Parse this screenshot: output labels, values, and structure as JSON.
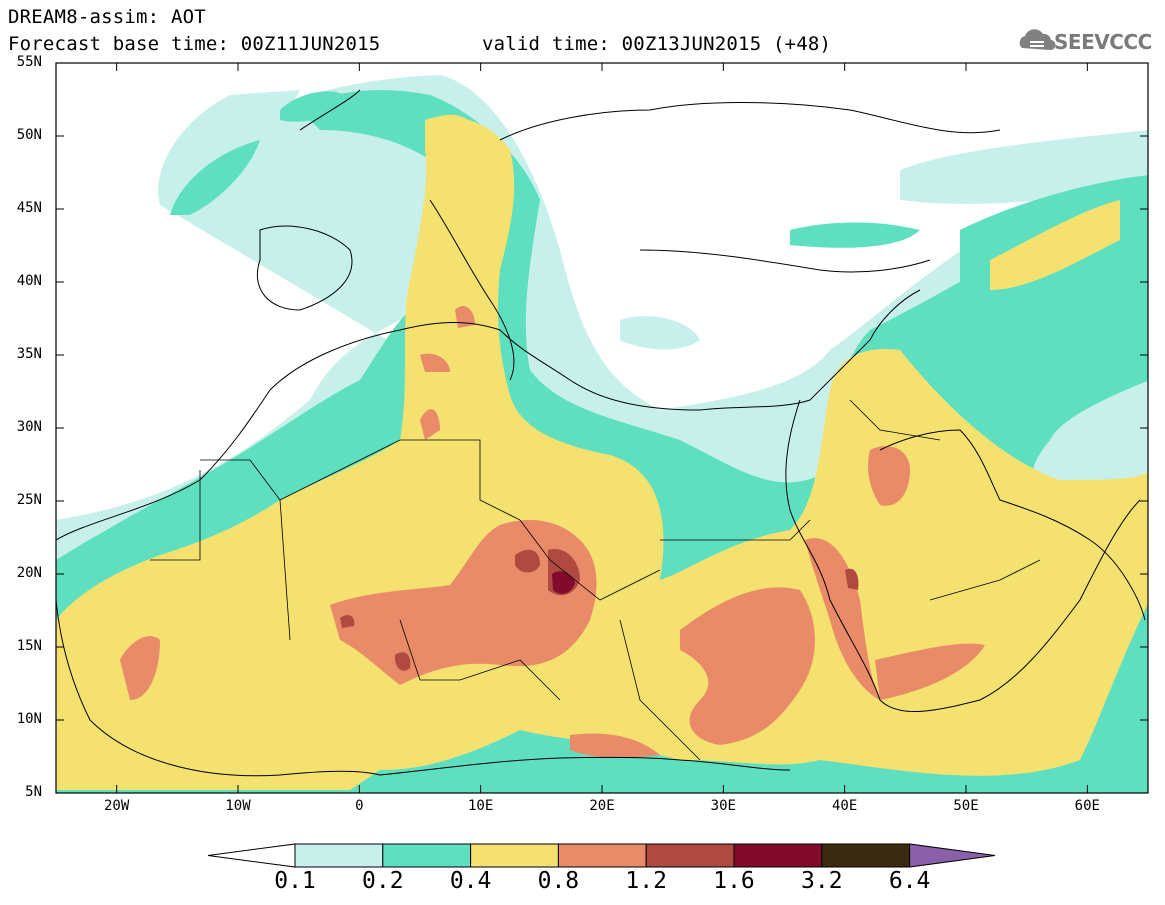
{
  "header": {
    "title_line1": "DREAM8-assim: AOT",
    "title_line2": "Forecast base time: 00Z11JUN2015",
    "valid_time": "valid time: 00Z13JUN2015 (+48)",
    "logo_text": "SEEVCCC"
  },
  "axes": {
    "lat_labels": [
      "55N",
      "50N",
      "45N",
      "40N",
      "35N",
      "30N",
      "25N",
      "20N",
      "15N",
      "10N",
      "5N"
    ],
    "lon_labels": [
      "20W",
      "10W",
      "0",
      "10E",
      "20E",
      "30E",
      "40E",
      "50E",
      "60E"
    ],
    "lat_range": [
      5,
      55
    ],
    "lon_range": [
      -25,
      65
    ]
  },
  "colorbar": {
    "labels": [
      "0.1",
      "0.2",
      "0.4",
      "0.8",
      "1.2",
      "1.6",
      "3.2",
      "6.4"
    ],
    "colors": [
      "#ffffff",
      "#c8f0ea",
      "#5ee0c0",
      "#f5e170",
      "#e98a68",
      "#b04a40",
      "#820a2a",
      "#3a2a10",
      "#8a60a8"
    ]
  }
}
